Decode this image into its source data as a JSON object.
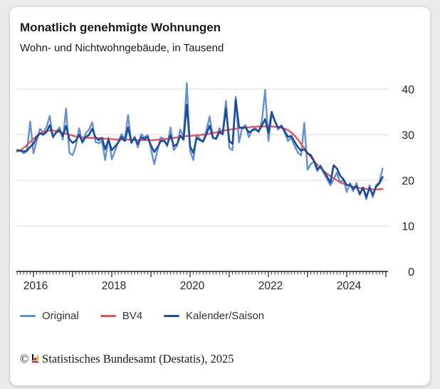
{
  "header": {
    "title": "Monatlich genehmigte Wohnungen",
    "subtitle": "Wohn- und Nichtwohngebäude, in Tausend"
  },
  "axis": {
    "color": "#1a1a1a",
    "grid_color": "#d9d9d9",
    "label_color": "#262626"
  },
  "legend": {
    "items": [
      {
        "label": "Original",
        "color": "#6390CE"
      },
      {
        "label": "BV4",
        "color": "#E6545A"
      },
      {
        "label": "Kalender/Saison",
        "color": "#1A4C9E"
      }
    ]
  },
  "footer": {
    "copyright": "©",
    "text": "Statistisches Bundesamt (Destatis), 2025"
  },
  "chart_data": {
    "type": "line",
    "title": "Monatlich genehmigte Wohnungen",
    "subtitle": "Wohn- und Nichtwohngebäude, in Tausend",
    "xlabel": "",
    "ylabel": "Tausend",
    "frequency": "monthly",
    "x_start": "2015-08",
    "x_end": "2024-12",
    "x_tick_years": [
      2016,
      2018,
      2020,
      2022,
      2024
    ],
    "y_ticks": [
      0,
      10,
      20,
      30,
      40
    ],
    "ylim": [
      0,
      42
    ],
    "grid": true,
    "legend_position": "bottom",
    "series": [
      {
        "name": "Original",
        "color": "#6390CE",
        "values": [
          26.3,
          26.5,
          25.9,
          26.3,
          32.9,
          25.9,
          28.6,
          31.3,
          30.4,
          31.7,
          34.1,
          29.3,
          30.8,
          31.6,
          28.9,
          35.7,
          26.0,
          25.5,
          27.6,
          31.4,
          28.2,
          30.3,
          31.1,
          32.7,
          28.4,
          28.1,
          28.6,
          24.4,
          29.4,
          24.6,
          26.4,
          28.6,
          30.1,
          29.0,
          34.3,
          28.1,
          29.6,
          27.2,
          30.1,
          29.4,
          29.9,
          26.9,
          23.5,
          26.6,
          29.4,
          29.1,
          27.4,
          31.6,
          26.6,
          27.6,
          31.1,
          29.6,
          41.3,
          26.4,
          24.4,
          30.0,
          29.1,
          28.4,
          31.0,
          34.0,
          29.4,
          29.1,
          31.4,
          30.4,
          37.4,
          27.1,
          26.6,
          38.3,
          28.3,
          31.6,
          32.1,
          29.4,
          31.1,
          31.4,
          30.6,
          33.0,
          39.8,
          28.6,
          34.4,
          33.1,
          31.1,
          32.0,
          30.4,
          28.6,
          29.4,
          27.6,
          26.1,
          25.4,
          32.6,
          22.3,
          23.6,
          24.1,
          22.0,
          23.3,
          21.5,
          20.2,
          18.9,
          20.2,
          21.7,
          19.4,
          20.3,
          17.4,
          19.4,
          17.6,
          19.4,
          16.8,
          18.4,
          15.8,
          18.9,
          16.3,
          18.9,
          19.6,
          22.6
        ]
      },
      {
        "name": "BV4",
        "color": "#E6545A",
        "values": [
          26.3,
          26.6,
          27.1,
          27.7,
          28.4,
          29.1,
          29.7,
          30.2,
          30.6,
          30.8,
          30.9,
          30.9,
          30.8,
          30.6,
          30.4,
          30.2,
          30.0,
          29.8,
          29.6,
          29.5,
          29.4,
          29.3,
          29.3,
          29.3,
          29.3,
          29.2,
          29.2,
          29.1,
          29.1,
          29.0,
          29.0,
          28.9,
          28.9,
          28.9,
          28.9,
          28.9,
          28.8,
          28.8,
          28.8,
          28.8,
          28.8,
          28.8,
          28.8,
          28.9,
          28.9,
          29.0,
          29.1,
          29.2,
          29.3,
          29.4,
          29.5,
          29.6,
          29.7,
          29.7,
          29.8,
          29.8,
          29.9,
          30.0,
          30.1,
          30.2,
          30.4,
          30.5,
          30.7,
          30.8,
          31.0,
          31.1,
          31.2,
          31.3,
          31.4,
          31.5,
          31.6,
          31.6,
          31.7,
          31.7,
          31.8,
          31.8,
          31.8,
          31.8,
          31.8,
          31.7,
          31.6,
          31.5,
          31.3,
          31.0,
          30.5,
          29.8,
          29.0,
          28.0,
          27.0,
          26.0,
          25.1,
          24.2,
          23.4,
          22.7,
          22.0,
          21.4,
          20.9,
          20.4,
          20.0,
          19.6,
          19.3,
          19.0,
          18.8,
          18.6,
          18.4,
          18.3,
          18.2,
          18.1,
          18.1,
          18.0,
          18.0,
          18.0,
          18.1
        ]
      },
      {
        "name": "Kalender/Saison",
        "color": "#1A4C9E",
        "values": [
          26.6,
          26.5,
          26.3,
          26.5,
          27.3,
          28.0,
          29.5,
          30.3,
          30.0,
          30.6,
          32.1,
          29.6,
          30.5,
          31.0,
          29.7,
          31.9,
          29.0,
          28.2,
          28.7,
          30.0,
          28.4,
          29.5,
          29.9,
          31.3,
          29.4,
          28.8,
          29.3,
          26.8,
          28.9,
          26.6,
          27.4,
          28.3,
          29.5,
          28.6,
          31.6,
          28.3,
          29.3,
          27.9,
          29.4,
          29.0,
          29.5,
          27.7,
          26.2,
          27.2,
          28.6,
          28.6,
          27.8,
          29.9,
          27.5,
          27.9,
          29.8,
          28.9,
          36.6,
          27.4,
          26.0,
          29.3,
          28.8,
          28.5,
          30.1,
          32.0,
          29.3,
          29.1,
          30.6,
          30.1,
          35.8,
          28.6,
          28.0,
          37.7,
          31.7,
          31.4,
          31.6,
          30.5,
          30.9,
          31.2,
          30.7,
          32.0,
          33.4,
          30.4,
          35.0,
          32.9,
          31.5,
          31.9,
          30.8,
          29.5,
          29.7,
          28.5,
          27.3,
          26.5,
          26.8,
          25.9,
          25.5,
          24.2,
          22.4,
          23.0,
          21.9,
          20.8,
          19.5,
          23.3,
          22.6,
          21.0,
          20.2,
          18.9,
          19.0,
          18.1,
          18.7,
          17.0,
          18.4,
          16.3,
          18.3,
          16.8,
          18.6,
          19.3,
          20.7
        ]
      }
    ]
  }
}
